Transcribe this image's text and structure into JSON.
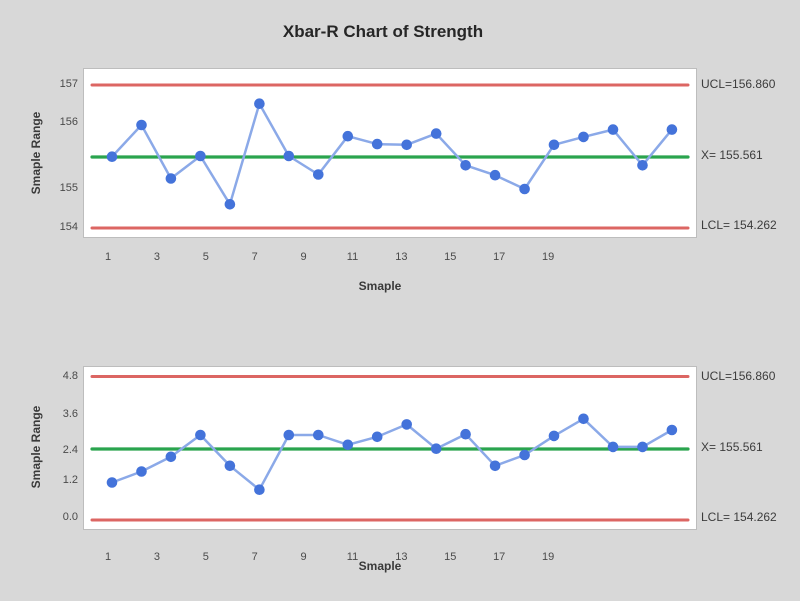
{
  "page": {
    "title": "Xbar-R Chart of Strength"
  },
  "colors": {
    "background": "#d8d8d8",
    "plot_background": "#ffffff",
    "plot_border": "#bdbdbd",
    "series_line": "#8ba9e8",
    "marker": "#4473da",
    "limit_line": "#dc6663",
    "center_line": "#2aa44e",
    "text": "#3c3c3c"
  },
  "chart_data": [
    {
      "type": "line",
      "title": "Xbar-R Chart of Strength",
      "xlabel": "Smaple",
      "ylabel": "Smaple Range",
      "x": [
        1,
        2,
        3,
        4,
        5,
        6,
        7,
        8,
        9,
        10,
        11,
        12,
        13,
        14,
        15,
        16,
        17,
        18,
        19,
        20
      ],
      "values": [
        155.52,
        156.0,
        155.19,
        155.53,
        154.66,
        156.56,
        155.53,
        155.25,
        155.83,
        155.71,
        155.7,
        155.87,
        155.39,
        155.24,
        155.03,
        155.7,
        155.82,
        155.93,
        155.39,
        155.93
      ],
      "x_tick_labels": [
        "1",
        "3",
        "5",
        "7",
        "9",
        "11",
        "13",
        "15",
        "17",
        "19"
      ],
      "y_tick_labels": [
        "157",
        "156",
        "155",
        "154"
      ],
      "ylim": [
        153.8,
        157.5
      ],
      "grid": false,
      "legend": "none",
      "lines": {
        "ucl": {
          "label": "UCL=156.860",
          "value": 156.86
        },
        "center": {
          "label": "X= 155.561",
          "value": 155.561
        },
        "lcl": {
          "label": "LCL= 154.262",
          "value": 154.262
        }
      }
    },
    {
      "type": "line",
      "title": "",
      "xlabel": "Smaple",
      "ylabel": "Smaple Range",
      "x": [
        1,
        2,
        3,
        4,
        5,
        6,
        7,
        8,
        9,
        10,
        11,
        12,
        13,
        14,
        15,
        16,
        17,
        18,
        19,
        20
      ],
      "values": [
        1.2,
        1.64,
        2.23,
        2.99,
        1.87,
        0.97,
        2.99,
        2.99,
        2.66,
        2.93,
        3.35,
        2.53,
        3.02,
        1.87,
        2.3,
        2.96,
        3.54,
        2.59,
        2.59,
        3.16
      ],
      "x_tick_labels": [
        "1",
        "3",
        "5",
        "7",
        "9",
        "11",
        "13",
        "15",
        "17",
        "19"
      ],
      "y_tick_labels": [
        "4.8",
        "3.6",
        "2.4",
        "1.2",
        "0.0"
      ],
      "ylim": [
        -0.4,
        5.2
      ],
      "grid": false,
      "legend": "none",
      "lines": {
        "ucl": {
          "label": "UCL=156.860",
          "value": 156.86
        },
        "center": {
          "label": "X= 155.561",
          "value": 155.561
        },
        "lcl": {
          "label": "LCL= 154.262",
          "value": 154.262
        }
      }
    }
  ]
}
